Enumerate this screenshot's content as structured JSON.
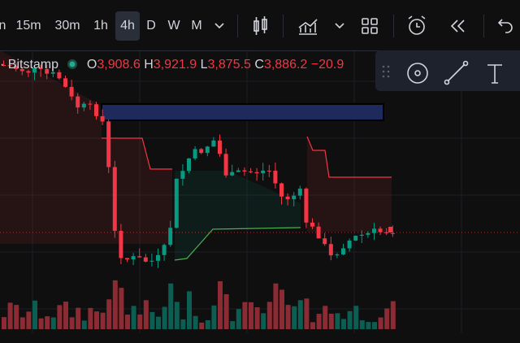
{
  "toolbar": {
    "intervals": [
      "n",
      "15m",
      "30m",
      "1h",
      "4h",
      "D",
      "W",
      "M"
    ]
  },
  "legend": {
    "exchange": "· Bitstamp",
    "open_label": "O",
    "open": "3,908.6",
    "high_label": "H",
    "high": "3,921.9",
    "low_label": "L",
    "low": "3,875.5",
    "close_label": "C",
    "close": "3,886.2",
    "change": "−20.9"
  }
}
